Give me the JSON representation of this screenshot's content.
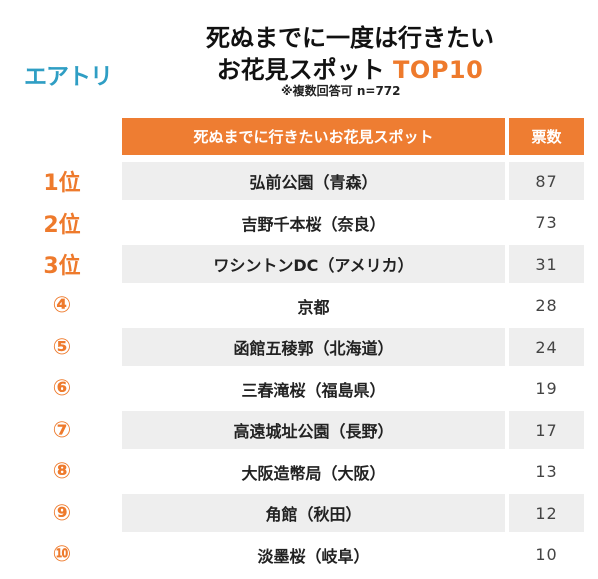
{
  "brand": {
    "logo_text": "エアトリ"
  },
  "header": {
    "title_line1": "死ぬまでに一度は行きたい",
    "title_line2_prefix": "お花見スポット ",
    "title_line2_accent": "TOP10",
    "note": "※複数回答可 n=772"
  },
  "colors": {
    "accent": "#ee7d32",
    "logo": "#2f9ec4",
    "row_shade": "#eeeeee"
  },
  "chart_data": {
    "type": "table",
    "columns": [
      "死ぬまでに行きたいお花見スポット",
      "票数"
    ],
    "rows": [
      {
        "rank": "1位",
        "name": "弘前公園（青森）",
        "votes": 87
      },
      {
        "rank": "2位",
        "name": "吉野千本桜（奈良）",
        "votes": 73
      },
      {
        "rank": "3位",
        "name": "ワシントンDC（アメリカ）",
        "votes": 31
      },
      {
        "rank": "④",
        "name": "京都",
        "votes": 28
      },
      {
        "rank": "⑤",
        "name": "函館五稜郭（北海道）",
        "votes": 24
      },
      {
        "rank": "⑥",
        "name": "三春滝桜（福島県）",
        "votes": 19
      },
      {
        "rank": "⑦",
        "name": "高遠城址公園（長野）",
        "votes": 17
      },
      {
        "rank": "⑧",
        "name": "大阪造幣局（大阪）",
        "votes": 13
      },
      {
        "rank": "⑨",
        "name": "角館（秋田）",
        "votes": 12
      },
      {
        "rank": "⑩",
        "name": "淡墨桜（岐阜）",
        "votes": 10
      }
    ]
  }
}
